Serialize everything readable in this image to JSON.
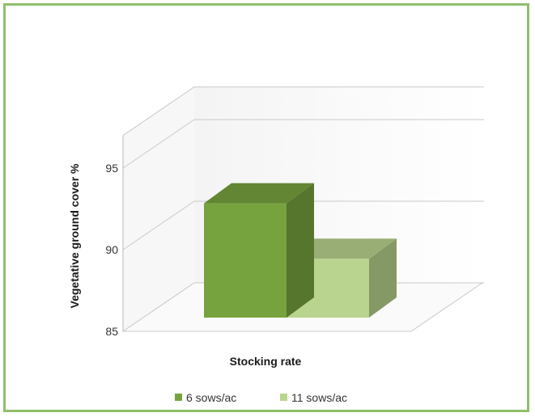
{
  "chart_data": {
    "type": "bar",
    "title": "",
    "xlabel": "Stocking rate",
    "ylabel": "Vegetative ground cover %",
    "ylim": [
      85,
      97
    ],
    "yticks": [
      85,
      90,
      95
    ],
    "categories": [
      ""
    ],
    "series": [
      {
        "name": "6 sows/ac",
        "values": [
          92
        ],
        "color": "#77a33e"
      },
      {
        "name": "11 sows/ac",
        "values": [
          88.6
        ],
        "color": "#b9d48e"
      }
    ],
    "grid": true,
    "legend_position": "bottom",
    "three_d": true
  }
}
